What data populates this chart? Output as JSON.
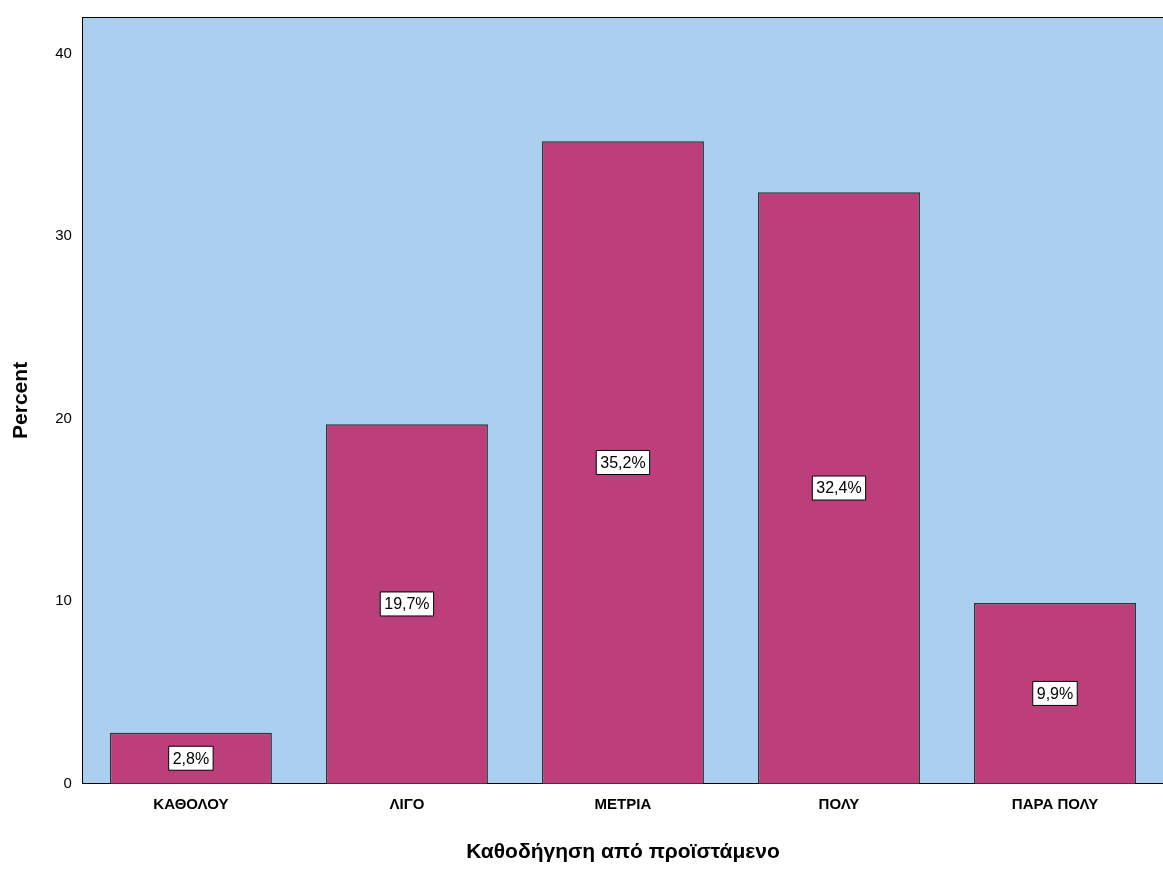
{
  "chart_data": {
    "type": "bar",
    "xlabel": "Καθοδήγηση από προϊστάμενο",
    "ylabel": "Percent",
    "categories": [
      "ΚΑΘΟΛΟΥ",
      "ΛΙΓΟ",
      "ΜΕΤΡΙΑ",
      "ΠΟΛΥ",
      "ΠΑΡΑ ΠΟΛΥ"
    ],
    "values": [
      2.8,
      19.7,
      35.2,
      32.4,
      9.9
    ],
    "value_labels": [
      "2,8%",
      "19,7%",
      "35,2%",
      "32,4%",
      "9,9%"
    ],
    "color": "#bc3f7c",
    "ylim": [
      0,
      42
    ],
    "yticks": [
      0,
      10,
      20,
      30,
      40
    ],
    "grid": false,
    "legend": false
  }
}
